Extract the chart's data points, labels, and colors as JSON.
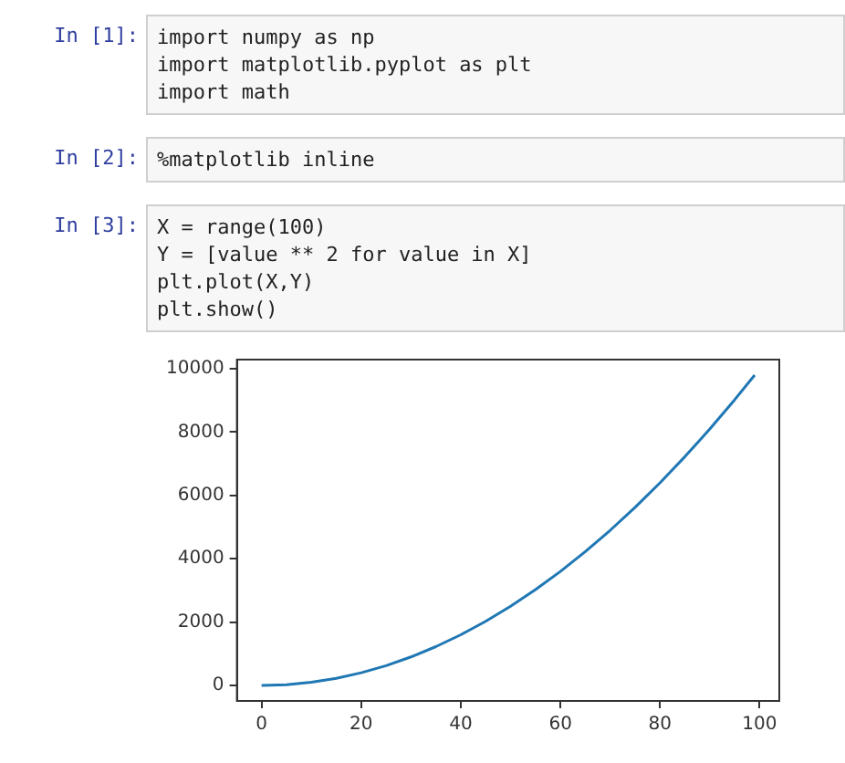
{
  "chart_data": {
    "type": "line",
    "annotations": [
      "In [1]:",
      "import numpy as np\nimport matplotlib.pyplot as plt\nimport math",
      "In [2]:",
      "%matplotlib inline",
      "In [3]:",
      "X = range(100)\nY = [value ** 2 for value in X]\nplt.plot(X,Y)\nplt.show()"
    ],
    "x": [
      0,
      5,
      10,
      15,
      20,
      25,
      30,
      35,
      40,
      45,
      50,
      55,
      60,
      65,
      70,
      75,
      80,
      85,
      90,
      95,
      99
    ],
    "series": [
      {
        "color": "#1f77b4",
        "values": [
          0,
          25,
          100,
          225,
          400,
          625,
          900,
          1225,
          1600,
          2025,
          2500,
          3025,
          3600,
          4225,
          4900,
          5625,
          6400,
          7225,
          8100,
          9025,
          9801
        ]
      }
    ],
    "xlim": [
      -4.95,
      103.95
    ],
    "ylim": [
      -490.05,
      10291.05
    ],
    "xticks": [
      0,
      20,
      40,
      60,
      80,
      100
    ],
    "yticks": [
      0,
      2000,
      4000,
      6000,
      8000,
      10000
    ],
    "grid": false,
    "legend": false,
    "marker": "none",
    "line_style": "solid"
  }
}
